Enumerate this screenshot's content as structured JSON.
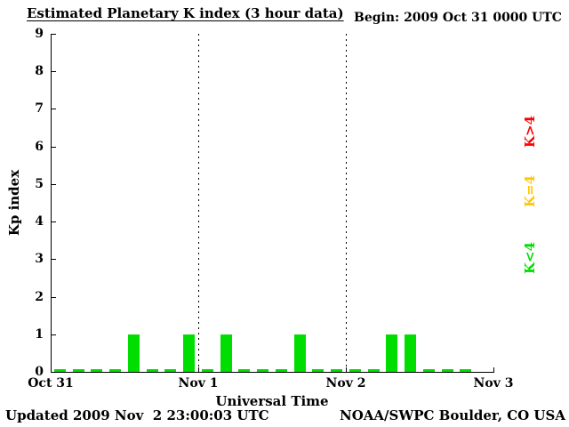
{
  "header": {
    "title": "Estimated Planetary K index (3 hour data)",
    "begin_label": "Begin: 2009 Oct 31 0000 UTC"
  },
  "footer": {
    "updated": "Updated 2009 Nov  2 23:00:03 UTC",
    "source": "NOAA/SWPC Boulder, CO USA"
  },
  "legend": {
    "items": [
      {
        "label": "K>4",
        "color": "#ff0000"
      },
      {
        "label": "K=4",
        "color": "#ffc800"
      },
      {
        "label": "K<4",
        "color": "#00dd00"
      }
    ]
  },
  "chart_data": {
    "type": "bar",
    "title": "Estimated Planetary K index (3 hour data)",
    "xlabel": "Universal Time",
    "ylabel": "Kp index",
    "ylim": [
      0,
      9
    ],
    "y_ticks": [
      0,
      1,
      2,
      3,
      4,
      5,
      6,
      7,
      8,
      9
    ],
    "x_ticks": [
      "Oct 31",
      "Nov 1",
      "Nov 2",
      "Nov 3"
    ],
    "x_start": "2009 Oct 31 0000 UTC",
    "x_end": "2009 Nov 3 0000 UTC",
    "bin_hours": 3,
    "bins_per_day": 8,
    "grid": "dotted vertical lines at day boundaries",
    "legend_position": "right, rotated",
    "values": [
      0,
      0,
      0,
      0,
      1,
      0,
      0,
      1,
      0,
      1,
      0,
      0,
      0,
      1,
      0,
      0,
      0,
      0,
      1,
      1,
      0,
      0,
      0,
      null
    ],
    "colors": {
      "lt4": "#00dd00",
      "eq4": "#ffc800",
      "gt4": "#ff0000"
    }
  }
}
